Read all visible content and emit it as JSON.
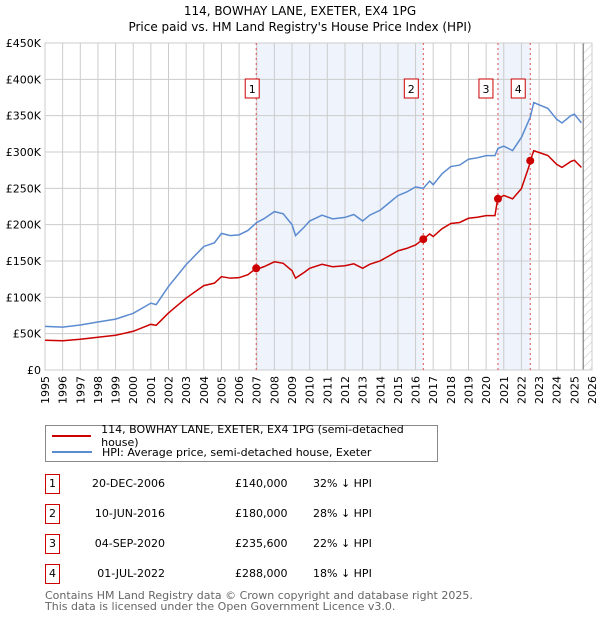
{
  "title_line1": "114, BOWHAY LANE, EXETER, EX4 1PG",
  "title_line2": "Price paid vs. HM Land Registry's House Price Index (HPI)",
  "chart_data": {
    "type": "line",
    "title": "114, BOWHAY LANE, EXETER, EX4 1PG — Price paid vs. HM Land Registry's House Price Index (HPI)",
    "xlim": [
      1995,
      2026
    ],
    "ylim": [
      0,
      450000
    ],
    "x_ticks": [
      "1995",
      "1996",
      "1997",
      "1998",
      "1999",
      "2000",
      "2001",
      "2002",
      "2003",
      "2004",
      "2005",
      "2006",
      "2007",
      "2008",
      "2009",
      "2010",
      "2011",
      "2012",
      "2013",
      "2014",
      "2015",
      "2016",
      "2017",
      "2018",
      "2019",
      "2020",
      "2021",
      "2022",
      "2023",
      "2024",
      "2025",
      "2026"
    ],
    "y_ticks": [
      "£0",
      "£50K",
      "£100K",
      "£150K",
      "£200K",
      "£250K",
      "£300K",
      "£350K",
      "£400K",
      "£450K"
    ],
    "grid": true,
    "colors": {
      "property": "#cc0000",
      "hpi": "#5b8bd0",
      "shade": "#eef3fc"
    },
    "hpi_series": {
      "name": "HPI: Average price, semi-detached house, Exeter",
      "x": [
        1995,
        1996,
        1997,
        1998,
        1999,
        2000,
        2000.5,
        2001,
        2001.3,
        2002,
        2003,
        2004,
        2004.6,
        2005,
        2005.5,
        2006,
        2006.5,
        2007,
        2007.4,
        2008,
        2008.5,
        2009,
        2009.2,
        2009.7,
        2010,
        2010.7,
        2011.3,
        2012,
        2012.5,
        2013,
        2013.4,
        2014,
        2014.5,
        2015,
        2015.5,
        2016,
        2016.44,
        2016.8,
        2017,
        2017.5,
        2018,
        2018.5,
        2019,
        2019.5,
        2020,
        2020.5,
        2020.67,
        2021,
        2021.5,
        2022,
        2022.5,
        2022.7,
        2023,
        2023.5,
        2024,
        2024.3,
        2024.8,
        2025,
        2025.4
      ],
      "y": [
        60000,
        59000,
        62000,
        66000,
        70000,
        78000,
        85000,
        92000,
        90000,
        115000,
        145000,
        170000,
        175000,
        188000,
        185000,
        186000,
        192000,
        203000,
        208000,
        218000,
        215000,
        200000,
        185000,
        197000,
        205000,
        213000,
        208000,
        210000,
        214000,
        205000,
        213000,
        220000,
        230000,
        240000,
        245000,
        252000,
        250000,
        260000,
        255000,
        270000,
        280000,
        282000,
        290000,
        292000,
        295000,
        295000,
        305000,
        308000,
        302000,
        320000,
        348000,
        368000,
        365000,
        360000,
        345000,
        340000,
        350000,
        352000,
        340000
      ]
    },
    "property_series": {
      "name": "114, BOWHAY LANE, EXETER, EX4 1PG (semi-detached house)",
      "segment_ratios": [
        0.683,
        0.72,
        0.78,
        0.82
      ]
    },
    "sales": [
      {
        "n": "1",
        "x": 2006.97,
        "value": 140000
      },
      {
        "n": "2",
        "x": 2016.44,
        "value": 180000
      },
      {
        "n": "3",
        "x": 2020.67,
        "value": 235600
      },
      {
        "n": "4",
        "x": 2022.5,
        "value": 288000
      }
    ],
    "shaded_ranges": [
      [
        2006.97,
        2016.44
      ],
      [
        2020.67,
        2022.5
      ]
    ],
    "forecast_start": 2025.5,
    "legend": [
      "114, BOWHAY LANE, EXETER, EX4 1PG (semi-detached house)",
      "HPI: Average price, semi-detached house, Exeter"
    ],
    "legend_position": "below"
  },
  "legend": {
    "property": "114, BOWHAY LANE, EXETER, EX4 1PG (semi-detached house)",
    "hpi": "HPI: Average price, semi-detached house, Exeter"
  },
  "sales_table": [
    {
      "n": "1",
      "date": "20-DEC-2006",
      "price": "£140,000",
      "hpi": "32% ↓ HPI"
    },
    {
      "n": "2",
      "date": "10-JUN-2016",
      "price": "£180,000",
      "hpi": "28% ↓ HPI"
    },
    {
      "n": "3",
      "date": "04-SEP-2020",
      "price": "£235,600",
      "hpi": "22% ↓ HPI"
    },
    {
      "n": "4",
      "date": "01-JUL-2022",
      "price": "£288,000",
      "hpi": "18% ↓ HPI"
    }
  ],
  "footer": {
    "line1": "Contains HM Land Registry data © Crown copyright and database right 2025.",
    "line2": "This data is licensed under the Open Government Licence v3.0."
  }
}
